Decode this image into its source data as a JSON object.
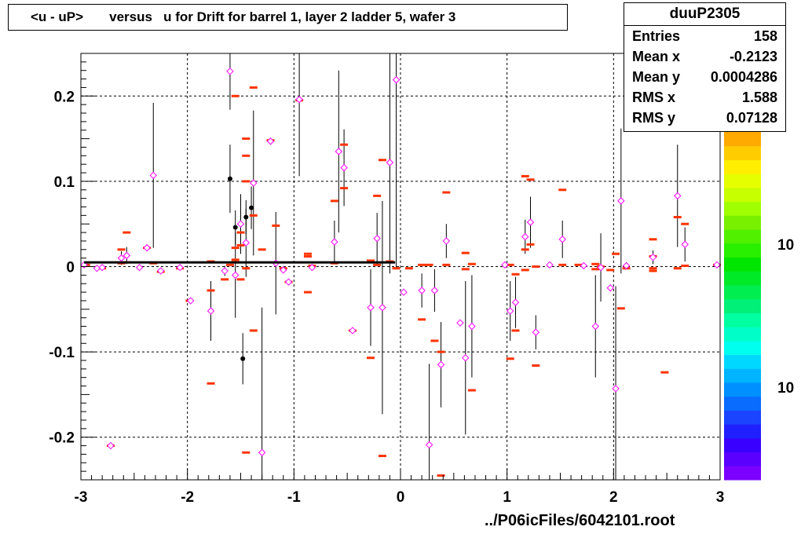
{
  "title": "<u - uP>       versus   u for Drift for barrel 1, layer 2 ladder 5, wafer 3",
  "stats": {
    "name": "duuP2305",
    "rows": [
      {
        "label": "Entries",
        "value": "158"
      },
      {
        "label": "Mean x",
        "value": "-0.2123"
      },
      {
        "label": "Mean y",
        "value": "0.0004286"
      },
      {
        "label": "RMS x",
        "value": "1.588"
      },
      {
        "label": "RMS y",
        "value": "0.07128"
      }
    ]
  },
  "footer": "../P06icFiles/6042101.root",
  "palette_labels": [
    "10",
    "10"
  ],
  "colors": {
    "marker": "#ff00ff",
    "bar": "#ff3300",
    "profile": "#000000",
    "grid": "#000000",
    "palette": [
      "#7b00ff",
      "#5a00ff",
      "#3a00ff",
      "#2020ff",
      "#1a44ff",
      "#0a6cff",
      "#0090ff",
      "#00b4ff",
      "#00d8ff",
      "#00ffee",
      "#00ffc8",
      "#00ffa0",
      "#00f078",
      "#00ee50",
      "#00ea28",
      "#00e600",
      "#28f000",
      "#50f000",
      "#78f000",
      "#a0ff00",
      "#c8ff00",
      "#e6ff00",
      "#ffee00",
      "#ffcc00",
      "#ffaa00"
    ]
  },
  "chart_data": {
    "type": "scatter",
    "xlim": [
      -3,
      3
    ],
    "ylim": [
      -0.25,
      0.25
    ],
    "x_ticks": [
      -3,
      -2,
      -1,
      0,
      1,
      2,
      3
    ],
    "y_ticks": [
      -0.2,
      -0.1,
      0,
      0.1,
      0.2
    ],
    "x_tick_labels": [
      "-3",
      "-2",
      "-1",
      "0",
      "1",
      "2",
      "3"
    ],
    "y_tick_labels": [
      "-0.2",
      "-0.1",
      "0",
      "0.1",
      "0.2"
    ],
    "grid": true,
    "profile_points": [
      {
        "x": -1.6,
        "y": 0.103,
        "err": 0.04
      },
      {
        "x": -1.55,
        "y": 0.046,
        "err": 0.02
      },
      {
        "x": -1.45,
        "y": 0.058,
        "err": 0.02
      },
      {
        "x": -1.4,
        "y": 0.069,
        "err": 0.025
      },
      {
        "x": -1.48,
        "y": -0.108,
        "err": 0.03
      }
    ],
    "profile_line": {
      "x": [
        -2.97,
        -0.05
      ],
      "y": 0.005
    },
    "markers": [
      {
        "x": -2.97,
        "y": 0.002,
        "err": 0
      },
      {
        "x": -2.85,
        "y": -0.002,
        "err": 0
      },
      {
        "x": -2.8,
        "y": -0.001,
        "err": 0
      },
      {
        "x": -2.72,
        "y": -0.21,
        "err": 0
      },
      {
        "x": -2.62,
        "y": 0.01,
        "err": 0.008
      },
      {
        "x": -2.57,
        "y": 0.013,
        "err": 0.01
      },
      {
        "x": -2.45,
        "y": -0.001,
        "err": 0
      },
      {
        "x": -2.38,
        "y": 0.022,
        "err": 0
      },
      {
        "x": -2.32,
        "y": 0.107,
        "err": 0.085
      },
      {
        "x": -2.25,
        "y": -0.005,
        "err": 0
      },
      {
        "x": -2.07,
        "y": -0.001,
        "err": 0
      },
      {
        "x": -1.97,
        "y": -0.04,
        "err": 0
      },
      {
        "x": -1.78,
        "y": -0.052,
        "err": 0.035
      },
      {
        "x": -1.65,
        "y": -0.005,
        "err": 0.006
      },
      {
        "x": -1.6,
        "y": 0.229,
        "err": 0.045
      },
      {
        "x": -1.55,
        "y": -0.01,
        "err": 0.05
      },
      {
        "x": -1.5,
        "y": 0.05,
        "err": 0.035
      },
      {
        "x": -1.45,
        "y": 0.028,
        "err": 0.04
      },
      {
        "x": -1.38,
        "y": 0.098,
        "err": 0.085
      },
      {
        "x": -1.3,
        "y": -0.218,
        "err": 0.17
      },
      {
        "x": -1.22,
        "y": 0.147,
        "err": 0
      },
      {
        "x": -1.17,
        "y": 0.004,
        "err": 0.06
      },
      {
        "x": -1.1,
        "y": -0.004,
        "err": 0
      },
      {
        "x": -1.05,
        "y": -0.018,
        "err": 0
      },
      {
        "x": -0.95,
        "y": 0.196,
        "err": 0.09
      },
      {
        "x": -0.83,
        "y": -0.001,
        "err": 0
      },
      {
        "x": -0.62,
        "y": 0.029,
        "err": 0.025
      },
      {
        "x": -0.58,
        "y": 0.135,
        "err": 0.095
      },
      {
        "x": -0.53,
        "y": 0.116,
        "err": 0.045
      },
      {
        "x": -0.45,
        "y": -0.075,
        "err": 0
      },
      {
        "x": -0.28,
        "y": -0.048,
        "err": 0.045
      },
      {
        "x": -0.22,
        "y": 0.033,
        "err": 0.03
      },
      {
        "x": -0.17,
        "y": -0.048,
        "err": 0.125
      },
      {
        "x": -0.1,
        "y": 0.122,
        "err": 0.13
      },
      {
        "x": -0.04,
        "y": 0.219,
        "err": 0.22
      },
      {
        "x": 0.03,
        "y": -0.03,
        "err": 0
      },
      {
        "x": 0.2,
        "y": -0.028,
        "err": 0.02
      },
      {
        "x": 0.27,
        "y": -0.209,
        "err": 0.095
      },
      {
        "x": 0.32,
        "y": -0.028,
        "err": 0.025
      },
      {
        "x": 0.38,
        "y": -0.115,
        "err": 0.05
      },
      {
        "x": 0.43,
        "y": 0.03,
        "err": 0.02
      },
      {
        "x": 0.56,
        "y": -0.066,
        "err": 0
      },
      {
        "x": 0.61,
        "y": -0.107,
        "err": 0.09
      },
      {
        "x": 0.67,
        "y": -0.07,
        "err": 0.06
      },
      {
        "x": 0.98,
        "y": 0.002,
        "err": 0
      },
      {
        "x": 1.03,
        "y": -0.052,
        "err": 0.035
      },
      {
        "x": 1.08,
        "y": -0.042,
        "err": 0.03
      },
      {
        "x": 1.17,
        "y": 0.035,
        "err": 0.02
      },
      {
        "x": 1.22,
        "y": 0.052,
        "err": 0.03
      },
      {
        "x": 1.27,
        "y": -0.077,
        "err": 0.02
      },
      {
        "x": 1.4,
        "y": 0.002,
        "err": 0
      },
      {
        "x": 1.52,
        "y": 0.032,
        "err": 0.022
      },
      {
        "x": 1.72,
        "y": 0.001,
        "err": 0
      },
      {
        "x": 1.83,
        "y": -0.07,
        "err": 0.06
      },
      {
        "x": 1.88,
        "y": -0.001,
        "err": 0.04
      },
      {
        "x": 1.97,
        "y": -0.025,
        "err": 0
      },
      {
        "x": 2.02,
        "y": -0.143,
        "err": 0.12
      },
      {
        "x": 2.07,
        "y": 0.077,
        "err": 0.085
      },
      {
        "x": 2.12,
        "y": 0.001,
        "err": 0
      },
      {
        "x": 2.37,
        "y": 0.011,
        "err": 0.008
      },
      {
        "x": 2.6,
        "y": 0.083,
        "err": 0.06
      },
      {
        "x": 2.67,
        "y": 0.026,
        "err": 0.02
      },
      {
        "x": 2.97,
        "y": 0.002,
        "err": 0
      }
    ],
    "bars": [
      {
        "x": -2.95,
        "y": 0.002
      },
      {
        "x": -2.8,
        "y": -0.002
      },
      {
        "x": -2.72,
        "y": -0.21
      },
      {
        "x": -2.62,
        "y": 0.02
      },
      {
        "x": -2.62,
        "y": 0.004
      },
      {
        "x": -2.57,
        "y": 0.04
      },
      {
        "x": -2.57,
        "y": 0.005
      },
      {
        "x": -2.38,
        "y": 0.022
      },
      {
        "x": -2.32,
        "y": 0.004
      },
      {
        "x": -2.25,
        "y": -0.006
      },
      {
        "x": -2.07,
        "y": -0.002
      },
      {
        "x": -1.98,
        "y": -0.04
      },
      {
        "x": -1.78,
        "y": -0.137
      },
      {
        "x": -1.78,
        "y": -0.028
      },
      {
        "x": -1.78,
        "y": 0.006
      },
      {
        "x": -1.65,
        "y": -0.015
      },
      {
        "x": -1.6,
        "y": 0.002
      },
      {
        "x": -1.55,
        "y": 0.2
      },
      {
        "x": -1.55,
        "y": 0.022
      },
      {
        "x": -1.55,
        "y": 0.008
      },
      {
        "x": -1.55,
        "y": 0.005
      },
      {
        "x": -1.5,
        "y": 0.04
      },
      {
        "x": -1.5,
        "y": 0.025
      },
      {
        "x": -1.5,
        "y": -0.015
      },
      {
        "x": -1.45,
        "y": 0.15
      },
      {
        "x": -1.45,
        "y": 0.13
      },
      {
        "x": -1.45,
        "y": 0.1
      },
      {
        "x": -1.45,
        "y": -0.002
      },
      {
        "x": -1.45,
        "y": -0.218
      },
      {
        "x": -1.38,
        "y": 0.21
      },
      {
        "x": -1.38,
        "y": 0.06
      },
      {
        "x": -1.38,
        "y": -0.075
      },
      {
        "x": -1.3,
        "y": 0.02
      },
      {
        "x": -1.22,
        "y": 0.148
      },
      {
        "x": -1.17,
        "y": 0.048
      },
      {
        "x": -1.1,
        "y": -0.002
      },
      {
        "x": -1.05,
        "y": -0.018
      },
      {
        "x": -0.95,
        "y": 0.195
      },
      {
        "x": -0.87,
        "y": 0.015
      },
      {
        "x": -0.87,
        "y": 0.012
      },
      {
        "x": -0.87,
        "y": -0.03
      },
      {
        "x": -0.83,
        "y": 0.001
      },
      {
        "x": -0.62,
        "y": 0.077
      },
      {
        "x": -0.62,
        "y": 0.004
      },
      {
        "x": -0.53,
        "y": 0.143
      },
      {
        "x": -0.53,
        "y": 0.092
      },
      {
        "x": -0.45,
        "y": -0.075
      },
      {
        "x": -0.28,
        "y": -0.107
      },
      {
        "x": -0.28,
        "y": 0.007
      },
      {
        "x": -0.22,
        "y": 0.083
      },
      {
        "x": -0.22,
        "y": 0.002
      },
      {
        "x": -0.17,
        "y": 0.125
      },
      {
        "x": -0.17,
        "y": -0.222
      },
      {
        "x": -0.1,
        "y": 0.006
      },
      {
        "x": -0.04,
        "y": -0.002
      },
      {
        "x": 0.08,
        "y": -0.002
      },
      {
        "x": 0.2,
        "y": 0.002
      },
      {
        "x": 0.2,
        "y": -0.062
      },
      {
        "x": 0.27,
        "y": 0.002
      },
      {
        "x": 0.32,
        "y": -0.087
      },
      {
        "x": 0.38,
        "y": -0.1
      },
      {
        "x": 0.38,
        "y": -0.245
      },
      {
        "x": 0.43,
        "y": 0.087
      },
      {
        "x": 0.43,
        "y": 0.002
      },
      {
        "x": 0.61,
        "y": 0.016
      },
      {
        "x": 0.61,
        "y": -0.003
      },
      {
        "x": 0.67,
        "y": 0.003
      },
      {
        "x": 0.67,
        "y": -0.145
      },
      {
        "x": 1.03,
        "y": -0.108
      },
      {
        "x": 1.03,
        "y": 0.002
      },
      {
        "x": 1.08,
        "y": -0.075
      },
      {
        "x": 1.08,
        "y": -0.009
      },
      {
        "x": 1.17,
        "y": 0.106
      },
      {
        "x": 1.17,
        "y": 0.02
      },
      {
        "x": 1.17,
        "y": -0.004
      },
      {
        "x": 1.22,
        "y": 0.102
      },
      {
        "x": 1.22,
        "y": 0.026
      },
      {
        "x": 1.27,
        "y": -0.116
      },
      {
        "x": 1.27,
        "y": 0
      },
      {
        "x": 1.52,
        "y": 0.09
      },
      {
        "x": 1.52,
        "y": 0.002
      },
      {
        "x": 1.67,
        "y": 0.002
      },
      {
        "x": 1.83,
        "y": 0.003
      },
      {
        "x": 1.83,
        "y": -0.003
      },
      {
        "x": 1.88,
        "y": 0
      },
      {
        "x": 1.97,
        "y": -0.004
      },
      {
        "x": 2.02,
        "y": 0.015
      },
      {
        "x": 2.07,
        "y": -0.049
      },
      {
        "x": 2.12,
        "y": -0.002
      },
      {
        "x": 2.37,
        "y": 0.032
      },
      {
        "x": 2.37,
        "y": 0.012
      },
      {
        "x": 2.37,
        "y": -0.002
      },
      {
        "x": 2.37,
        "y": -0.005
      },
      {
        "x": 2.48,
        "y": -0.124
      },
      {
        "x": 2.6,
        "y": 0.058
      },
      {
        "x": 2.6,
        "y": -0.002
      },
      {
        "x": 2.67,
        "y": 0.05
      },
      {
        "x": 2.67,
        "y": 0.001
      },
      {
        "x": 2.97,
        "y": 0.002
      }
    ]
  }
}
